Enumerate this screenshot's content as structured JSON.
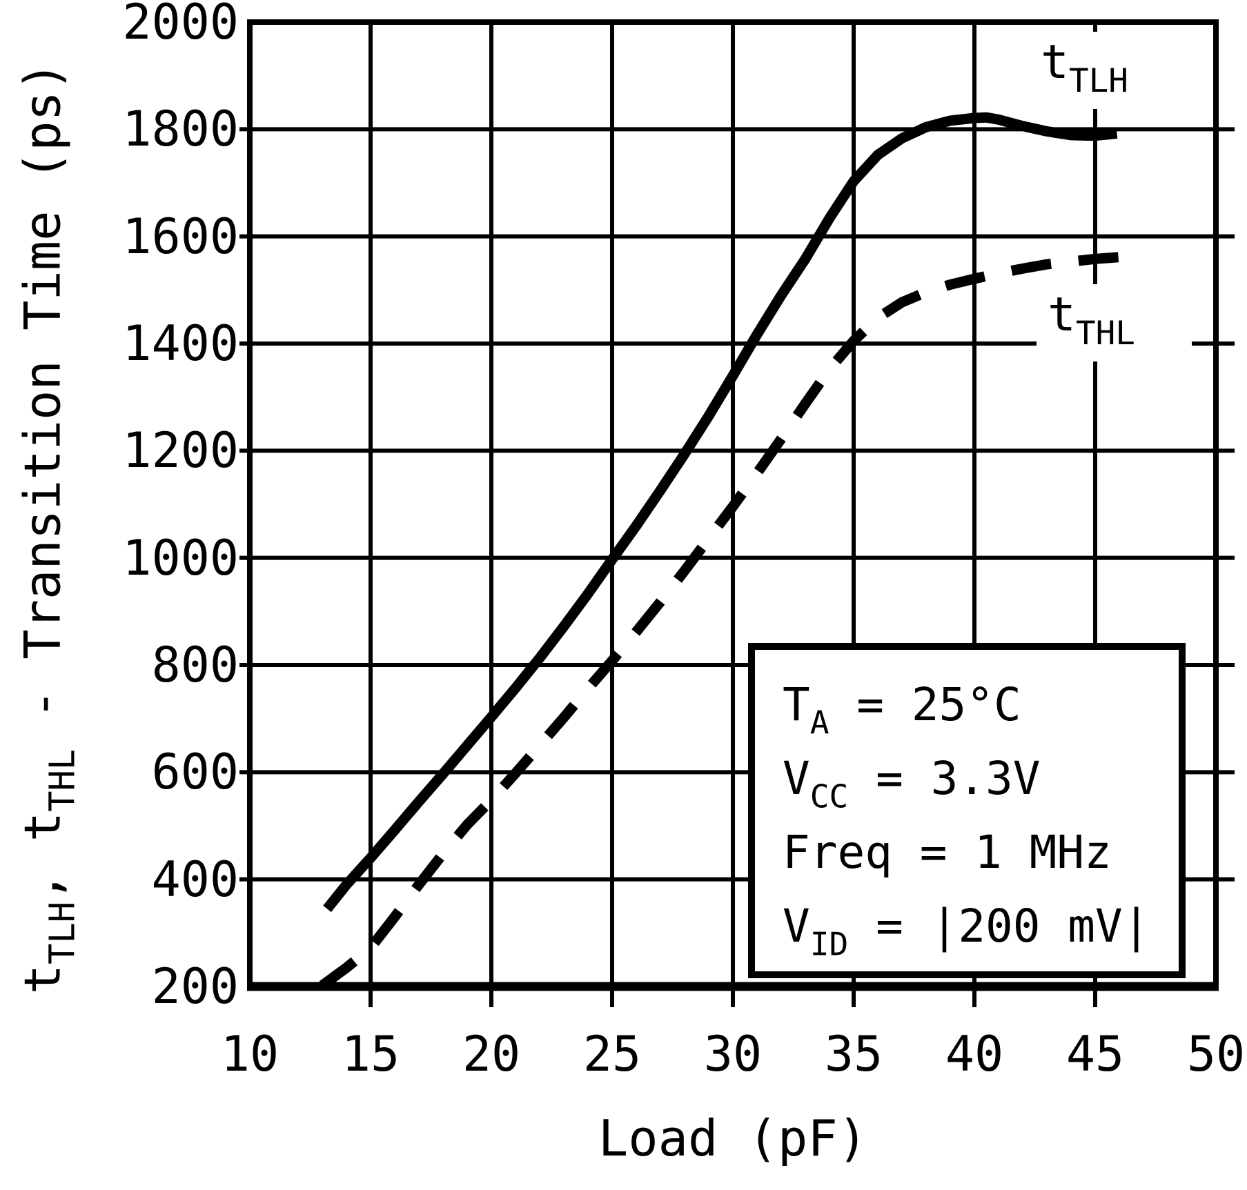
{
  "chart_data": {
    "type": "line",
    "title": "",
    "xlabel": "Load (pF)",
    "ylabel": "tTLH, tTHL - Transition Time (ps)",
    "xlim": [
      10,
      50
    ],
    "ylim": [
      200,
      2000
    ],
    "x_ticks": [
      10,
      15,
      20,
      25,
      30,
      35,
      40,
      45,
      50
    ],
    "y_ticks": [
      200,
      400,
      600,
      800,
      1000,
      1200,
      1400,
      1600,
      1800,
      2000
    ],
    "grid": true,
    "legend_position": "inline-labels",
    "series": [
      {
        "name": "tTLH",
        "style": "solid",
        "points": [
          [
            13.2,
            345
          ],
          [
            14,
            390
          ],
          [
            15,
            440
          ],
          [
            16,
            492
          ],
          [
            17,
            545
          ],
          [
            18,
            597
          ],
          [
            19,
            650
          ],
          [
            20,
            703
          ],
          [
            21,
            757
          ],
          [
            22,
            813
          ],
          [
            23,
            872
          ],
          [
            24,
            933
          ],
          [
            25,
            997
          ],
          [
            26,
            1060
          ],
          [
            27,
            1126
          ],
          [
            28,
            1194
          ],
          [
            29,
            1265
          ],
          [
            30,
            1340
          ],
          [
            31,
            1417
          ],
          [
            32,
            1490
          ],
          [
            33,
            1558
          ],
          [
            34,
            1634
          ],
          [
            35,
            1703
          ],
          [
            36,
            1752
          ],
          [
            37,
            1783
          ],
          [
            38,
            1804
          ],
          [
            39,
            1816
          ],
          [
            40,
            1821
          ],
          [
            40.5,
            1822
          ],
          [
            41,
            1818
          ],
          [
            42,
            1806
          ],
          [
            43,
            1796
          ],
          [
            44,
            1789
          ],
          [
            45,
            1788
          ],
          [
            45.9,
            1792
          ]
        ]
      },
      {
        "name": "tTHL",
        "style": "dashed",
        "points": [
          [
            13.0,
            202
          ],
          [
            14,
            235
          ],
          [
            15,
            272
          ],
          [
            16,
            330
          ],
          [
            17,
            390
          ],
          [
            18,
            448
          ],
          [
            19,
            502
          ],
          [
            20,
            548
          ],
          [
            21,
            598
          ],
          [
            22,
            650
          ],
          [
            23,
            702
          ],
          [
            24,
            756
          ],
          [
            25,
            808
          ],
          [
            26,
            862
          ],
          [
            27,
            918
          ],
          [
            28,
            976
          ],
          [
            29,
            1036
          ],
          [
            30,
            1096
          ],
          [
            31,
            1158
          ],
          [
            32,
            1222
          ],
          [
            33,
            1288
          ],
          [
            34,
            1352
          ],
          [
            35,
            1405
          ],
          [
            36,
            1448
          ],
          [
            37,
            1477
          ],
          [
            38,
            1496
          ],
          [
            39,
            1510
          ],
          [
            40,
            1521
          ],
          [
            41,
            1531
          ],
          [
            42,
            1540
          ],
          [
            43,
            1548
          ],
          [
            44,
            1553
          ],
          [
            45,
            1558
          ],
          [
            46.2,
            1562
          ]
        ]
      }
    ]
  },
  "y_axis_title": {
    "t1": "t",
    "sub1": "TLH",
    "sep": ", ",
    "t2": "t",
    "sub2": "THL",
    "rest": " - Transition Time (ps)"
  },
  "x_axis_title": "Load (pF)",
  "curve_labels": {
    "tlh": {
      "main": "t",
      "sub": "TLH"
    },
    "thl": {
      "main": "t",
      "sub": "THL"
    }
  },
  "annotation": {
    "lines": [
      {
        "pre": "T",
        "sub": "A",
        "rest": " = 25°C"
      },
      {
        "pre": "V",
        "sub": "CC",
        "rest": " = 3.3V"
      },
      {
        "pre": "Freq",
        "sub": "",
        "rest": " = 1 MHz"
      },
      {
        "pre": "V",
        "sub": "ID",
        "rest": " = |200 mV|"
      }
    ]
  },
  "colors": {
    "foreground": "#000000",
    "background": "#ffffff"
  }
}
